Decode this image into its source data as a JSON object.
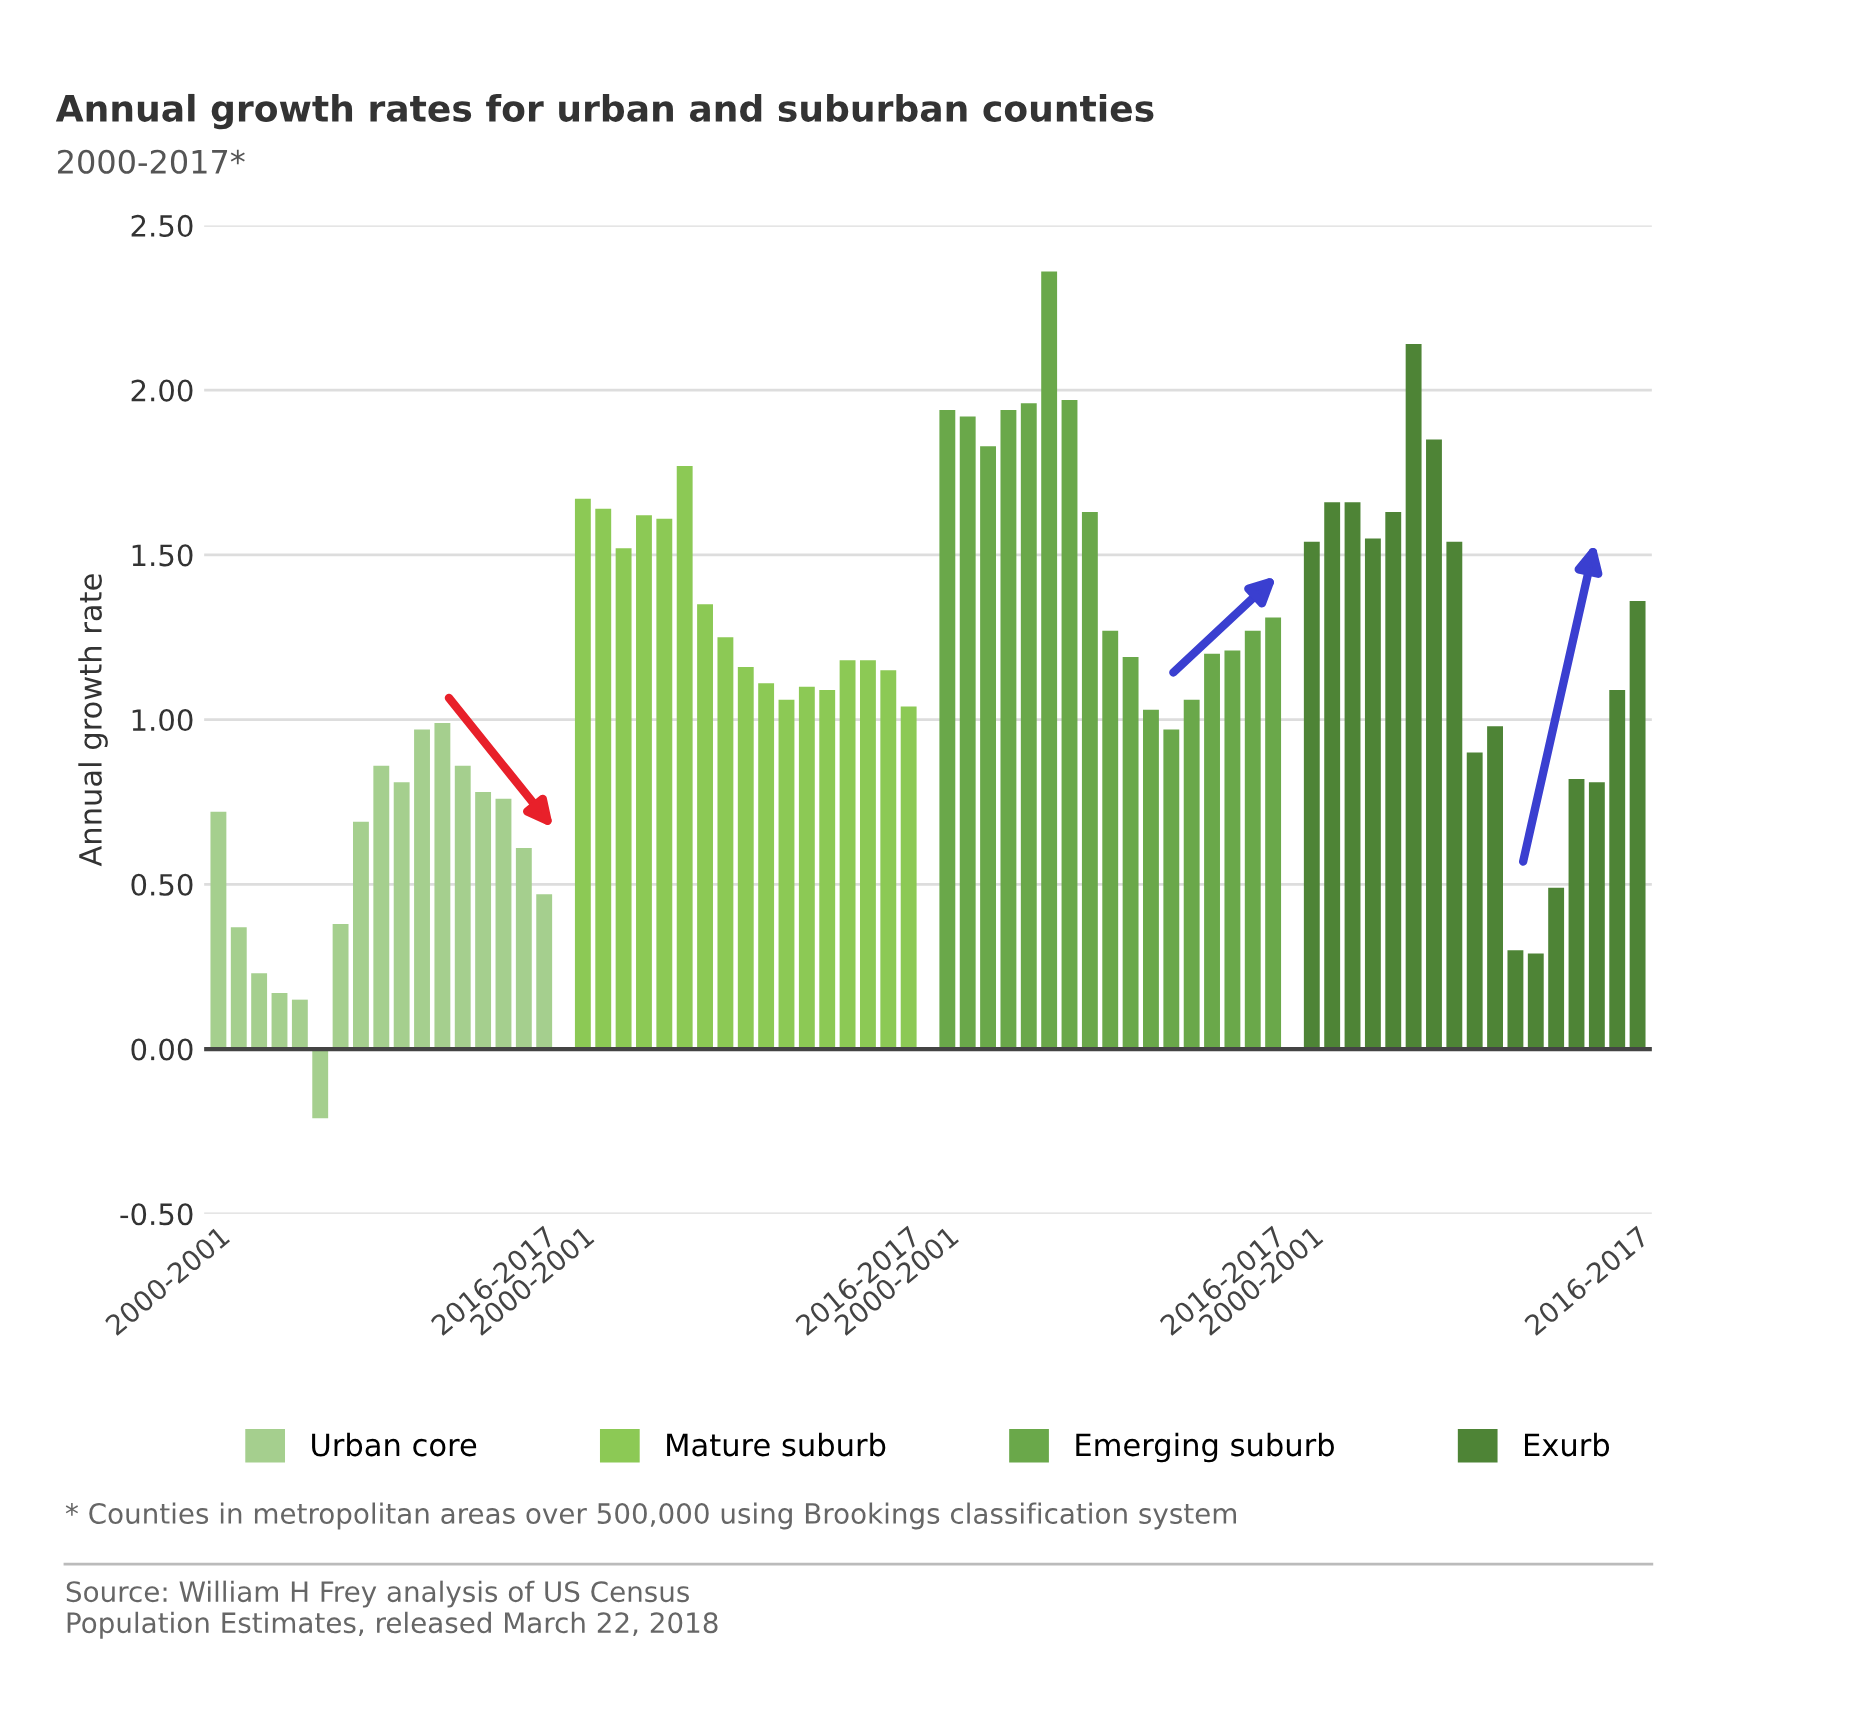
{
  "chart_data": {
    "type": "bar",
    "title": "Annual growth rates for urban and suburban counties",
    "subtitle": "2000-2017*",
    "ylabel": "Annual growth rate",
    "categories": [
      "2000-2001",
      null,
      null,
      null,
      null,
      null,
      null,
      null,
      null,
      null,
      null,
      null,
      null,
      null,
      null,
      null,
      "2016-2017",
      "2000-2001",
      null,
      null,
      null,
      null,
      null,
      null,
      null,
      null,
      null,
      null,
      null,
      null,
      null,
      null,
      null,
      "2016-2017",
      "2000-2001",
      null,
      null,
      null,
      null,
      null,
      null,
      null,
      null,
      null,
      null,
      null,
      null,
      null,
      null,
      null,
      "2016-2017",
      "2000-2001",
      null,
      null,
      null,
      null,
      null,
      null,
      null,
      null,
      null,
      null,
      null,
      null,
      null,
      null,
      null,
      "2016-2017"
    ],
    "series": [
      {
        "name": "Urban core",
        "color": "#a5cf8e",
        "values": [
          0.72,
          0.37,
          0.23,
          0.17,
          0.15,
          -0.21,
          0.38,
          0.69,
          0.86,
          0.81,
          0.97,
          0.99,
          0.86,
          0.78,
          0.76,
          0.61,
          0.47,
          null,
          null,
          null,
          null,
          null,
          null,
          null,
          null,
          null,
          null,
          null,
          null,
          null,
          null,
          null,
          null,
          null,
          null,
          null,
          null,
          null,
          null,
          null,
          null,
          null,
          null,
          null,
          null,
          null,
          null,
          null,
          null,
          null,
          null,
          null,
          null,
          null,
          null,
          null,
          null,
          null,
          null,
          null,
          null,
          null,
          null,
          null,
          null,
          null,
          null,
          null
        ]
      },
      {
        "name": "Mature suburb",
        "color": "#8cc955",
        "values": [
          null,
          null,
          null,
          null,
          null,
          null,
          null,
          null,
          null,
          null,
          null,
          null,
          null,
          null,
          null,
          null,
          null,
          1.67,
          1.64,
          1.52,
          1.62,
          1.61,
          1.77,
          1.35,
          1.25,
          1.16,
          1.11,
          1.06,
          1.1,
          1.09,
          1.18,
          1.18,
          1.15,
          1.04,
          null,
          null,
          null,
          null,
          null,
          null,
          null,
          null,
          null,
          null,
          null,
          null,
          null,
          null,
          null,
          null,
          null,
          null,
          null,
          null,
          null,
          null,
          null,
          null,
          null,
          null,
          null,
          null,
          null,
          null,
          null,
          null,
          null,
          null
        ]
      },
      {
        "name": "Emerging suburb",
        "color": "#6aa84a",
        "values": [
          null,
          null,
          null,
          null,
          null,
          null,
          null,
          null,
          null,
          null,
          null,
          null,
          null,
          null,
          null,
          null,
          null,
          null,
          null,
          null,
          null,
          null,
          null,
          null,
          null,
          null,
          null,
          null,
          null,
          null,
          null,
          null,
          null,
          null,
          1.94,
          1.92,
          1.83,
          1.94,
          1.96,
          2.36,
          1.97,
          1.63,
          1.27,
          1.19,
          1.03,
          0.97,
          1.06,
          1.2,
          1.21,
          1.27,
          1.31,
          null,
          null,
          null,
          null,
          null,
          null,
          null,
          null,
          null,
          null,
          null,
          null,
          null,
          null,
          null,
          null,
          null
        ]
      },
      {
        "name": "Exurb",
        "color": "#4e8436",
        "values": [
          null,
          null,
          null,
          null,
          null,
          null,
          null,
          null,
          null,
          null,
          null,
          null,
          null,
          null,
          null,
          null,
          null,
          null,
          null,
          null,
          null,
          null,
          null,
          null,
          null,
          null,
          null,
          null,
          null,
          null,
          null,
          null,
          null,
          null,
          null,
          null,
          null,
          null,
          null,
          null,
          null,
          null,
          null,
          null,
          null,
          null,
          null,
          null,
          null,
          null,
          null,
          1.54,
          1.66,
          1.66,
          1.55,
          1.63,
          2.14,
          1.85,
          1.54,
          0.9,
          0.98,
          0.3,
          0.29,
          0.49,
          0.82,
          0.81,
          1.09,
          1.36
        ]
      }
    ],
    "ylim": [
      -0.5,
      2.5
    ],
    "yticks": [
      {
        "value": -0.5,
        "label": "-0.50"
      },
      {
        "value": 0,
        "label": "0.00"
      },
      {
        "value": 0.5,
        "label": "0.50"
      },
      {
        "value": 1,
        "label": "1.00"
      },
      {
        "value": 1.5,
        "label": "1.50"
      },
      {
        "value": 2,
        "label": "2.00"
      },
      {
        "value": 2.5,
        "label": "2.50"
      }
    ],
    "grid": "y",
    "legend": "bottom",
    "annotations": [
      "* Counties in metropolitan areas over 500,000 using Brookings classification system",
      "Source: William H Frey analysis of US Census\nPopulation Estimates, released March 22, 2018"
    ]
  }
}
